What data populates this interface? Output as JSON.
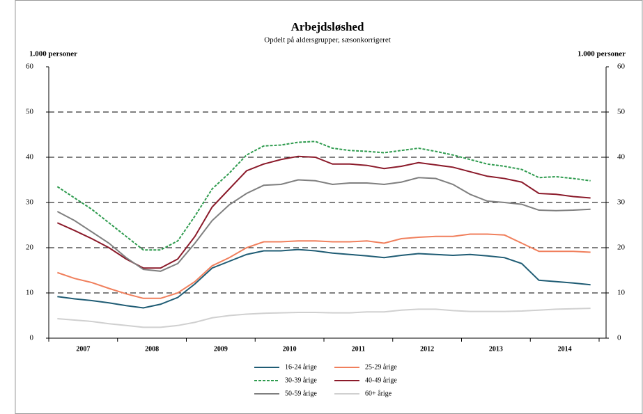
{
  "chart_data": {
    "type": "line",
    "title": "Arbejdsløshed",
    "subtitle": "Opdelt på aldersgrupper, sæsonkorrigeret",
    "ylabel": "1.000 personer",
    "y2label": "1.000 personer",
    "categories": [
      "2007",
      null,
      null,
      null,
      "2008",
      null,
      null,
      null,
      "2009",
      null,
      null,
      null,
      "2010",
      null,
      null,
      null,
      "2011",
      null,
      null,
      null,
      "2012",
      null,
      null,
      null,
      "2013",
      null,
      null,
      null,
      "2014",
      null,
      null,
      null
    ],
    "series": [
      {
        "name": "16-24 årige",
        "color": "#1f5c74",
        "style": "solid",
        "values": [
          9.2,
          8.7,
          8.3,
          7.8,
          7.2,
          6.7,
          7.5,
          9.0,
          12,
          15.5,
          17,
          18.5,
          19.3,
          19.3,
          19.6,
          19.3,
          18.8,
          18.5,
          18.2,
          17.8,
          18.3,
          18.7,
          18.5,
          18.3,
          18.5,
          18.2,
          17.8,
          16.5,
          12.8,
          12.5,
          12.2,
          11.8
        ]
      },
      {
        "name": "25-29 årige",
        "color": "#f07f5c",
        "style": "solid",
        "values": [
          14.5,
          13.2,
          12.3,
          11,
          9.8,
          8.8,
          8.8,
          10,
          12.5,
          16,
          17.8,
          20,
          21.3,
          21.3,
          21.5,
          21.5,
          21.3,
          21.3,
          21.5,
          21,
          22,
          22.3,
          22.5,
          22.5,
          23,
          23,
          22.8,
          21,
          19.2,
          19.2,
          19.2,
          19
        ]
      },
      {
        "name": "30-39 årige",
        "color": "#2e9b4e",
        "style": "dashed",
        "values": [
          33.5,
          31,
          28.5,
          25.5,
          22.5,
          19.5,
          19.5,
          21.5,
          27,
          33,
          36.5,
          40.5,
          42.5,
          42.7,
          43.3,
          43.5,
          42,
          41.5,
          41.3,
          41,
          41.5,
          42,
          41.3,
          40.5,
          39.5,
          38.5,
          38,
          37.3,
          35.5,
          35.7,
          35.3,
          34.8
        ]
      },
      {
        "name": "40-49 årige",
        "color": "#8b1a2a",
        "style": "solid",
        "values": [
          25.5,
          23.8,
          22,
          20,
          17.5,
          15.5,
          15.5,
          17.5,
          22.5,
          29,
          33,
          37,
          38.5,
          39.5,
          40.2,
          40,
          38.5,
          38.5,
          38.2,
          37.5,
          38,
          38.8,
          38.3,
          37.8,
          36.8,
          35.8,
          35.3,
          34.5,
          32,
          31.8,
          31.3,
          31
        ]
      },
      {
        "name": "50-59 årige",
        "color": "#7f7f7f",
        "style": "solid",
        "values": [
          28,
          26,
          23.5,
          21,
          17.8,
          15.2,
          14.8,
          16.5,
          21,
          26,
          29.5,
          32,
          33.8,
          34,
          35,
          34.8,
          34,
          34.3,
          34.3,
          34,
          34.5,
          35.5,
          35.3,
          34,
          31.8,
          30.3,
          30,
          29.6,
          28.3,
          28.2,
          28.3,
          28.5
        ]
      },
      {
        "name": "60+ årige",
        "color": "#d0d0d0",
        "style": "solid",
        "values": [
          4.3,
          4,
          3.7,
          3.2,
          2.8,
          2.4,
          2.4,
          2.8,
          3.5,
          4.5,
          5,
          5.3,
          5.5,
          5.6,
          5.7,
          5.7,
          5.6,
          5.6,
          5.8,
          5.8,
          6.2,
          6.4,
          6.4,
          6.1,
          5.9,
          5.9,
          5.9,
          6.0,
          6.2,
          6.4,
          6.5,
          6.6
        ]
      }
    ],
    "ylim": [
      0,
      60
    ],
    "yticks": [
      0,
      10,
      20,
      30,
      40,
      50,
      60
    ],
    "y2lim": [
      0,
      60
    ],
    "y2ticks": [
      0,
      10,
      20,
      30,
      40,
      50,
      60
    ],
    "grid": true
  }
}
